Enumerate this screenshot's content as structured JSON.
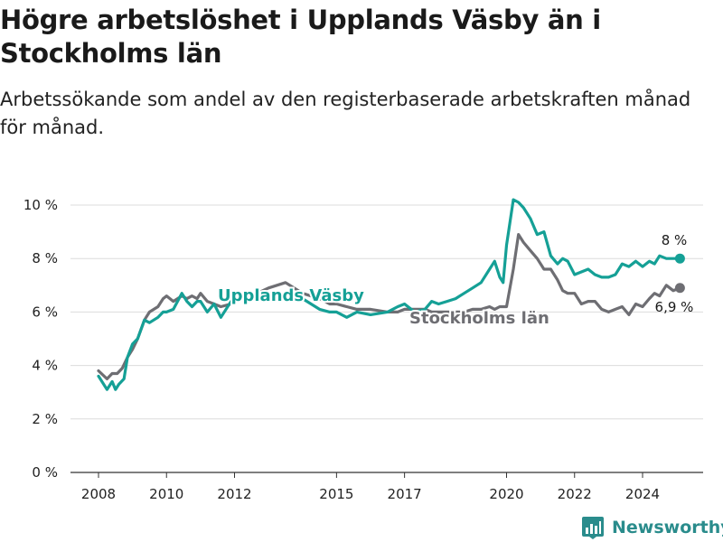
{
  "title": "Högre arbetslöshet i Upplands Väsby än i Stockholms län",
  "subtitle": "Arbetssökande som andel av den registerbaserade arbetskraften månad för månad.",
  "brand": "Newsworthy",
  "colors": {
    "upplands": "#15a096",
    "stockholm": "#6e6e73",
    "grid": "#dcdcdc",
    "brand": "#2a8c8c"
  },
  "chart_data": {
    "type": "line",
    "title": "Högre arbetslöshet i Upplands Väsby än i Stockholms län",
    "subtitle": "Arbetssökande som andel av den registerbaserade arbetskraften månad för månad.",
    "xlabel": "",
    "ylabel": "",
    "xlim": [
      2007.6,
      2025.8
    ],
    "ylim": [
      0,
      10.5
    ],
    "xticks": [
      2008,
      2010,
      2012,
      2015,
      2017,
      2020,
      2022,
      2024
    ],
    "xtick_labels": [
      "2008",
      "2010",
      "2012",
      "2015",
      "2017",
      "2020",
      "2022",
      "2024"
    ],
    "yticks": [
      0,
      2,
      4,
      6,
      8,
      10
    ],
    "ytick_labels": [
      "0 %",
      "2 %",
      "4 %",
      "6 %",
      "8 %",
      "10 %"
    ],
    "grid": "horizontal",
    "series": [
      {
        "name": "Upplands Väsby",
        "end_label": "8 %",
        "x": [
          2008.0,
          2008.25,
          2008.4,
          2008.5,
          2008.6,
          2008.75,
          2008.85,
          2009.0,
          2009.15,
          2009.35,
          2009.5,
          2009.75,
          2009.9,
          2010.0,
          2010.2,
          2010.45,
          2010.6,
          2010.75,
          2010.9,
          2011.0,
          2011.2,
          2011.4,
          2011.6,
          2011.9,
          2012.1,
          2012.5,
          2013.0,
          2013.5,
          2014.0,
          2014.5,
          2014.8,
          2015.0,
          2015.3,
          2015.6,
          2016.0,
          2016.5,
          2016.8,
          2017.0,
          2017.3,
          2017.6,
          2017.8,
          2018.0,
          2018.25,
          2018.5,
          2018.75,
          2019.0,
          2019.25,
          2019.5,
          2019.65,
          2019.8,
          2019.9,
          2020.0,
          2020.2,
          2020.35,
          2020.5,
          2020.7,
          2020.9,
          2021.1,
          2021.3,
          2021.5,
          2021.65,
          2021.8,
          2022.0,
          2022.2,
          2022.4,
          2022.6,
          2022.8,
          2023.0,
          2023.2,
          2023.4,
          2023.6,
          2023.8,
          2024.0,
          2024.2,
          2024.35,
          2024.5,
          2024.7,
          2024.9,
          2025.1
        ],
        "y": [
          3.6,
          3.1,
          3.4,
          3.1,
          3.3,
          3.5,
          4.3,
          4.8,
          5.0,
          5.7,
          5.6,
          5.8,
          6.0,
          6.0,
          6.1,
          6.7,
          6.4,
          6.2,
          6.4,
          6.4,
          6.0,
          6.3,
          5.8,
          6.4,
          6.5,
          6.6,
          6.7,
          6.6,
          6.5,
          6.1,
          6.0,
          6.0,
          5.8,
          6.0,
          5.9,
          6.0,
          6.2,
          6.3,
          6.0,
          6.1,
          6.4,
          6.3,
          6.4,
          6.5,
          6.7,
          6.9,
          7.1,
          7.6,
          7.9,
          7.3,
          7.1,
          8.5,
          10.2,
          10.1,
          9.9,
          9.5,
          8.9,
          9.0,
          8.1,
          7.8,
          8.0,
          7.9,
          7.4,
          7.5,
          7.6,
          7.4,
          7.3,
          7.3,
          7.4,
          7.8,
          7.7,
          7.9,
          7.7,
          7.9,
          7.8,
          8.1,
          8.0,
          8.0,
          8.0
        ]
      },
      {
        "name": "Stockholms län",
        "end_label": "6,9 %",
        "x": [
          2008.0,
          2008.25,
          2008.4,
          2008.55,
          2008.7,
          2008.85,
          2009.0,
          2009.15,
          2009.35,
          2009.5,
          2009.75,
          2009.9,
          2010.0,
          2010.2,
          2010.45,
          2010.6,
          2010.75,
          2010.9,
          2011.0,
          2011.2,
          2011.4,
          2011.6,
          2011.9,
          2012.1,
          2012.5,
          2013.0,
          2013.5,
          2014.0,
          2014.5,
          2014.8,
          2015.0,
          2015.3,
          2015.6,
          2016.0,
          2016.5,
          2016.8,
          2017.0,
          2017.3,
          2017.6,
          2017.8,
          2018.0,
          2018.25,
          2018.5,
          2018.75,
          2019.0,
          2019.25,
          2019.5,
          2019.65,
          2019.8,
          2020.0,
          2020.2,
          2020.35,
          2020.5,
          2020.7,
          2020.9,
          2021.1,
          2021.3,
          2021.5,
          2021.65,
          2021.8,
          2022.0,
          2022.2,
          2022.4,
          2022.6,
          2022.8,
          2023.0,
          2023.2,
          2023.4,
          2023.6,
          2023.8,
          2024.0,
          2024.2,
          2024.35,
          2024.5,
          2024.7,
          2024.9,
          2025.1
        ],
        "y": [
          3.8,
          3.5,
          3.7,
          3.7,
          3.9,
          4.3,
          4.6,
          5.0,
          5.7,
          6.0,
          6.2,
          6.5,
          6.6,
          6.4,
          6.6,
          6.5,
          6.6,
          6.5,
          6.7,
          6.4,
          6.3,
          6.2,
          6.3,
          6.5,
          6.6,
          6.9,
          7.1,
          6.7,
          6.5,
          6.3,
          6.3,
          6.2,
          6.1,
          6.1,
          6.0,
          6.0,
          6.1,
          6.1,
          6.1,
          6.0,
          6.0,
          6.0,
          6.0,
          6.0,
          6.1,
          6.1,
          6.2,
          6.1,
          6.2,
          6.2,
          7.6,
          8.9,
          8.6,
          8.3,
          8.0,
          7.6,
          7.6,
          7.2,
          6.8,
          6.7,
          6.7,
          6.3,
          6.4,
          6.4,
          6.1,
          6.0,
          6.1,
          6.2,
          5.9,
          6.3,
          6.2,
          6.5,
          6.7,
          6.6,
          7.0,
          6.8,
          6.9
        ]
      }
    ],
    "series_labels": [
      "Upplands Väsby",
      "Stockholms län"
    ]
  }
}
